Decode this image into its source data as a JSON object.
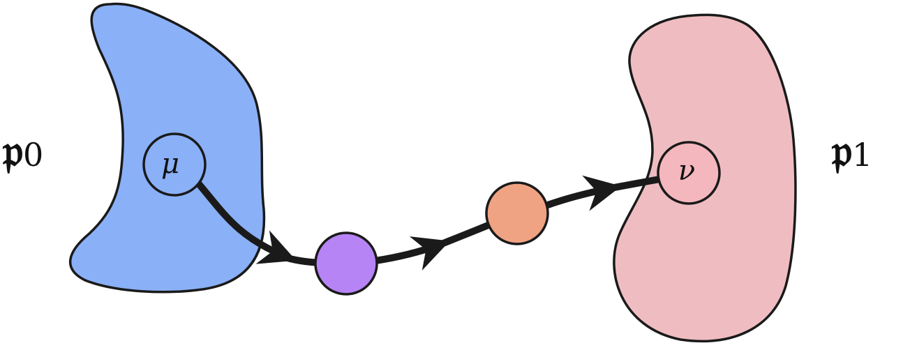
{
  "labels": {
    "left_set": {
      "symbol": "𝔭",
      "subscript": "0"
    },
    "right_set": {
      "symbol": "𝔭",
      "subscript": "1"
    },
    "source_point": "μ",
    "target_point": "ν"
  },
  "colors": {
    "left_set_fill": "#8ab0f7",
    "right_set_fill": "#efbdc1",
    "target_point_fill": "#f4b7bd",
    "intermediate_point_1": "#b784f5",
    "intermediate_point_2": "#f0a383",
    "stroke": "#1a1a1a"
  }
}
